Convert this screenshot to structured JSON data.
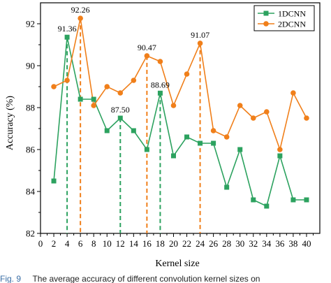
{
  "chart_data": {
    "type": "line",
    "xlabel": "Kernel size",
    "ylabel": "Accuracy (%)",
    "xlim": [
      0,
      42
    ],
    "ylim": [
      82,
      93
    ],
    "xticks": [
      0,
      2,
      4,
      6,
      8,
      10,
      12,
      14,
      16,
      18,
      20,
      22,
      24,
      26,
      28,
      30,
      32,
      34,
      36,
      38,
      40
    ],
    "yticks": [
      82,
      84,
      86,
      88,
      90,
      92
    ],
    "grid": false,
    "legend_position": "top-right",
    "x": [
      2,
      4,
      6,
      8,
      10,
      12,
      14,
      16,
      18,
      20,
      22,
      24,
      26,
      28,
      30,
      32,
      34,
      36,
      38,
      40
    ],
    "series": [
      {
        "name": "1DCNN",
        "color": "#2ca25f",
        "marker": "square",
        "values": [
          84.5,
          91.36,
          88.4,
          88.4,
          86.9,
          87.5,
          86.9,
          86.0,
          88.69,
          85.7,
          86.6,
          86.3,
          86.3,
          84.2,
          86.0,
          83.6,
          83.3,
          85.7,
          83.6,
          83.6
        ]
      },
      {
        "name": "2DCNN",
        "color": "#f07f1a",
        "marker": "circle",
        "values": [
          89.0,
          89.3,
          92.26,
          88.1,
          89.0,
          88.7,
          89.3,
          90.47,
          90.2,
          88.1,
          89.6,
          91.07,
          86.9,
          86.6,
          88.1,
          87.5,
          87.8,
          86.0,
          88.7,
          87.5
        ]
      }
    ],
    "annotations": [
      {
        "x": 4,
        "y": 91.36,
        "label": "91.36",
        "series": "1DCNN"
      },
      {
        "x": 6,
        "y": 92.26,
        "label": "92.26",
        "series": "2DCNN"
      },
      {
        "x": 12,
        "y": 87.5,
        "label": "87.50",
        "series": "1DCNN"
      },
      {
        "x": 16,
        "y": 90.47,
        "label": "90.47",
        "series": "2DCNN"
      },
      {
        "x": 18,
        "y": 88.69,
        "label": "88.69",
        "series": "1DCNN"
      },
      {
        "x": 24,
        "y": 91.07,
        "label": "91.07",
        "series": "2DCNN"
      }
    ]
  },
  "caption": {
    "fig_label": "Fig. 9",
    "text": "The average accuracy of different convolution kernel sizes on"
  }
}
